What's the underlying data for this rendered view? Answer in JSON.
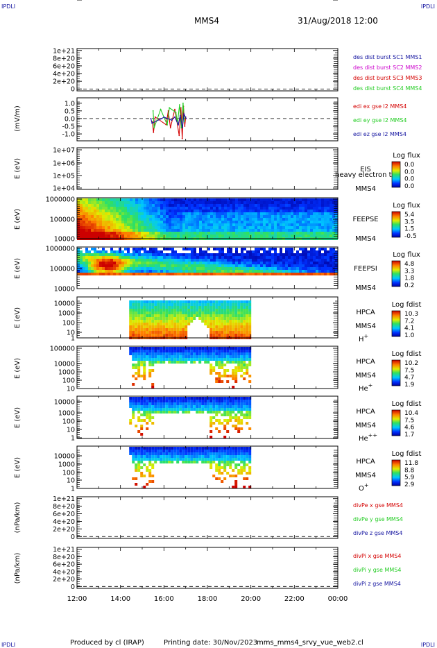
{
  "header": {
    "corner_left_top": "IPDLI",
    "corner_right_top": "IPDLI",
    "spacecraft": "MMS4",
    "datetime": "31/Aug/2018 12:00",
    "corner_left_bottom": "IPDLI",
    "corner_right_bottom": "IPDLI"
  },
  "footer": {
    "produced_by": "Produced by cl (IRAP)",
    "printing_date": "Printing date: 30/Nov/2023",
    "script": "mms_mms4_srvy_vue_web2.cl"
  },
  "colors": {
    "red": "#d40000",
    "green": "#22cc22",
    "blue": "#1414a0",
    "magenta": "#cc00cc"
  },
  "chart_data": {
    "type": "multi-panel time series / spectrogram",
    "x_ticks": [
      "12:00",
      "14:00",
      "16:00",
      "18:00",
      "20:00",
      "22:00",
      "00:00"
    ],
    "x_range_hours": [
      0,
      12
    ],
    "panels": [
      {
        "id": "p1",
        "kind": "line",
        "ylabel": "",
        "yticks": [
          "1e+21",
          "8e+20",
          "6e+20",
          "4e+20",
          "2e+20",
          "0"
        ],
        "ytick_values": [
          1e+21,
          8e+20,
          6e+20,
          4e+20,
          2e+20,
          0
        ],
        "ylim": [
          -5e+19,
          1.05e+21
        ],
        "zero_line": true,
        "legend": [
          {
            "text": "des dist burst SC1 MMS1",
            "color": "blue"
          },
          {
            "text": "des dist burst SC2 MMS2",
            "color": "magenta"
          },
          {
            "text": "des dist burst SC3 MMS3",
            "color": "red"
          },
          {
            "text": "des dist burst SC4 MMS4",
            "color": "green"
          }
        ]
      },
      {
        "id": "p2",
        "kind": "line",
        "ylabel": "(mV/m)",
        "yticks": [
          "1.0",
          "0.5",
          "0.0",
          "-0.5",
          "-1.0"
        ],
        "ytick_values": [
          1.0,
          0.5,
          0.0,
          -0.5,
          -1.0
        ],
        "ylim": [
          -1.45,
          1.35
        ],
        "zero_line": true,
        "legend": [
          {
            "text": "edi ex gse l2 MMS4",
            "color": "red"
          },
          {
            "text": "edi ey gse l2 MMS4",
            "color": "green"
          },
          {
            "text": "edi ez gse l2 MMS4",
            "color": "blue"
          }
        ],
        "series": [
          {
            "name": "edi ex gse l2 MMS4",
            "color": "red",
            "x": [
              3.47,
              3.52,
              3.6,
              4.1,
              4.2,
              4.3,
              4.5,
              4.6,
              4.7,
              4.78,
              4.84,
              4.9,
              4.96,
              5.0
            ],
            "y": [
              -0.2,
              -0.9,
              0.1,
              -0.4,
              0.5,
              -0.6,
              0.6,
              -0.2,
              -1.1,
              0.7,
              -1.3,
              0.8,
              -0.5,
              0.1
            ]
          },
          {
            "name": "edi ey gse l2 MMS4",
            "color": "green",
            "x": [
              3.5,
              3.55,
              3.85,
              4.15,
              4.25,
              4.55,
              4.62,
              4.72,
              4.8,
              4.88,
              4.95
            ],
            "y": [
              0.5,
              -0.6,
              0.6,
              -0.4,
              0.7,
              0.4,
              -0.3,
              0.9,
              -0.6,
              1.0,
              -0.2
            ]
          },
          {
            "name": "edi ez gse l2 MMS4",
            "color": "blue",
            "x": [
              3.4,
              3.45,
              3.9,
              4.0,
              4.35,
              4.5,
              4.66,
              4.75,
              4.85,
              4.92,
              5.02
            ],
            "y": [
              0.0,
              -0.3,
              0.0,
              0.1,
              -0.1,
              0.1,
              -0.4,
              0.2,
              -0.6,
              0.3,
              0.0
            ]
          }
        ]
      },
      {
        "id": "p3",
        "kind": "spectrogram-empty",
        "ylabel": "E (eV)",
        "yticks": [
          "1e+07",
          "1e+06",
          "1e+05",
          "1e+04"
        ],
        "right_labels": [
          "EIS",
          "MMS4"
        ],
        "overlap_text": "heavy electron to",
        "cbar_title": "Log flux",
        "cbar_ticks": [
          "0.0",
          "0.0",
          "0.0",
          "0.0"
        ]
      },
      {
        "id": "p4",
        "kind": "spectrogram",
        "ylabel": "E (eV)",
        "yticks": [
          "1000000",
          "100000",
          "10000"
        ],
        "right_labels": [
          "FEEPSE",
          "MMS4"
        ],
        "cbar_title": "Log flux",
        "cbar_ticks": [
          "5.4",
          "3.5",
          "1.5",
          "-0.5"
        ],
        "data_range_hours": [
          0,
          12
        ]
      },
      {
        "id": "p5",
        "kind": "spectrogram",
        "ylabel": "E (eV)",
        "yticks": [
          "1000000",
          "100000",
          "10000"
        ],
        "right_labels": [
          "FEEPSI",
          "MMS4"
        ],
        "cbar_title": "Log flux",
        "cbar_ticks": [
          "4.8",
          "3.3",
          "1.8",
          "0.2"
        ],
        "data_range_hours": [
          0,
          12
        ]
      },
      {
        "id": "p6",
        "kind": "spectrogram",
        "ylabel": "E (eV)",
        "yticks": [
          "10000",
          "1000",
          "100",
          "10",
          "1"
        ],
        "right_labels": [
          "HPCA",
          "MMS4"
        ],
        "species": "H",
        "species_sup": "+",
        "cbar_title": "Log fdist",
        "cbar_ticks": [
          "10.3",
          "7.2",
          "4.1",
          "1.0"
        ],
        "data_range_hours": [
          2.4,
          8.0
        ]
      },
      {
        "id": "p7",
        "kind": "spectrogram",
        "ylabel": "E (eV)",
        "yticks": [
          "100000",
          "10000",
          "1000",
          "100",
          "10",
          "1"
        ],
        "right_labels": [
          "HPCA",
          "MMS4"
        ],
        "species": "He",
        "species_sup": "+",
        "cbar_title": "Log fdist",
        "cbar_ticks": [
          "10.2",
          "7.5",
          "4.7",
          "1.9"
        ],
        "data_range_hours": [
          2.4,
          8.0
        ]
      },
      {
        "id": "p8",
        "kind": "spectrogram",
        "ylabel": "E (eV)",
        "yticks": [
          "10000",
          "1000",
          "100",
          "10",
          "1"
        ],
        "right_labels": [
          "HPCA",
          "MMS4"
        ],
        "species": "He",
        "species_sup": "++",
        "cbar_title": "Log fdist",
        "cbar_ticks": [
          "10.4",
          "7.5",
          "4.6",
          "1.7"
        ],
        "data_range_hours": [
          2.4,
          8.0
        ]
      },
      {
        "id": "p9",
        "kind": "spectrogram",
        "ylabel": "E (eV)",
        "yticks": [
          "10000",
          "1000",
          "100",
          "10",
          "1"
        ],
        "right_labels": [
          "HPCA",
          "MMS4"
        ],
        "species": "O",
        "species_sup": "+",
        "cbar_title": "Log fdist",
        "cbar_ticks": [
          "11.8",
          "8.8",
          "5.9",
          "2.9"
        ],
        "data_range_hours": [
          2.4,
          8.0
        ]
      },
      {
        "id": "p10",
        "kind": "line",
        "ylabel": "(nPa/km)",
        "yticks": [
          "1e+21",
          "8e+20",
          "6e+20",
          "4e+20",
          "2e+20",
          "0"
        ],
        "ytick_values": [
          1e+21,
          8e+20,
          6e+20,
          4e+20,
          2e+20,
          0
        ],
        "ylim": [
          -5e+19,
          1.05e+21
        ],
        "zero_line": true,
        "legend": [
          {
            "text": "divPe x gse MMS4",
            "color": "red"
          },
          {
            "text": "divPe y gse MMS4",
            "color": "green"
          },
          {
            "text": "divPe z gse MMS4",
            "color": "blue"
          }
        ]
      },
      {
        "id": "p11",
        "kind": "line",
        "ylabel": "(nPa/km)",
        "yticks": [
          "1e+21",
          "8e+20",
          "6e+20",
          "4e+20",
          "2e+20",
          "0"
        ],
        "ytick_values": [
          1e+21,
          8e+20,
          6e+20,
          4e+20,
          2e+20,
          0
        ],
        "ylim": [
          -5e+19,
          1.05e+21
        ],
        "zero_line": true,
        "legend": [
          {
            "text": "divPi x gse MMS4",
            "color": "red"
          },
          {
            "text": "divPi y gse MMS4",
            "color": "green"
          },
          {
            "text": "divPi z gse MMS4",
            "color": "blue"
          }
        ]
      }
    ]
  }
}
